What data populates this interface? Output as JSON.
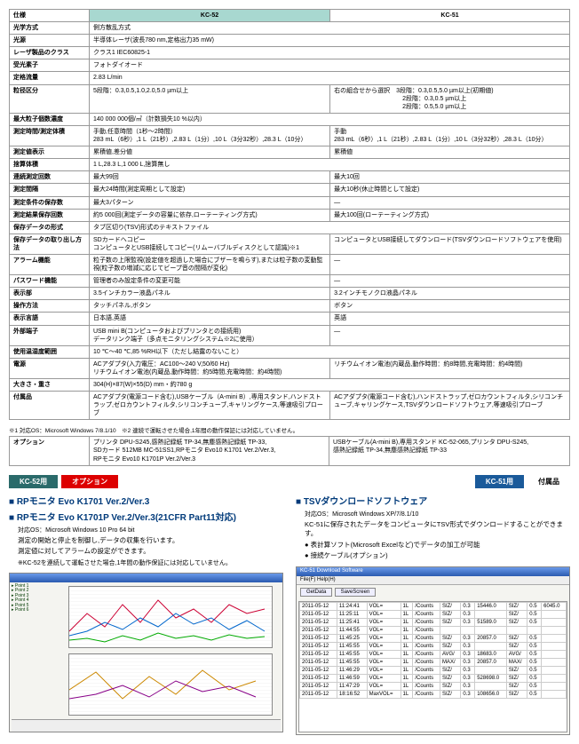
{
  "header": {
    "spec": "仕様",
    "kc52": "KC-52",
    "kc51": "KC-51"
  },
  "rows": [
    {
      "l": "光学方式",
      "a": "側方散乱方式",
      "b": ""
    },
    {
      "l": "光源",
      "a": "半導体レーザ(波長780 nm,定格出力35 mW)",
      "b": ""
    },
    {
      "l": "レーザ製品のクラス",
      "a": "クラス1 IEC60825-1",
      "b": ""
    },
    {
      "l": "受光素子",
      "a": "フォトダイオード",
      "b": ""
    },
    {
      "l": "定格流量",
      "a": "2.83 L/min",
      "b": ""
    },
    {
      "l": "粒径区分",
      "a": "5段階：0.3,0.5,1.0,2.0,5.0 µm以上",
      "b": "右の組合せから選択　3段階：0.3,0.5,5.0 µm以上(初期値)\n　　　　　　　　　　　2段階：0.3,0.5 µm以上\n　　　　　　　　　　　2段階：0.5,5.0 µm以上"
    },
    {
      "l": "最大粒子個数濃度",
      "a": "140 000 000個/㎥（計数損失10 %以内）",
      "b": ""
    },
    {
      "l": "測定時間/測定体積",
      "a": "手動,任意時間（1秒～2時間）\n283 mL（6秒）,1 L（21秒）,2.83 L（1分）,10 L（3分32秒）,28.3 L（10分）",
      "b": "手動\n283 mL（6秒）,1 L（21秒）,2.83 L（1分）,10 L（3分32秒）,28.3 L（10分）"
    },
    {
      "l": "測定値表示",
      "a": "累積値,差分値",
      "b": "累積値"
    },
    {
      "l": "捨算体積",
      "a": "1 L,28.3 L,1 000 L,捨算無し",
      "b": ""
    },
    {
      "l": "連続測定回数",
      "a": "最大99回",
      "b": "最大10回"
    },
    {
      "l": "測定間隔",
      "a": "最大24時間(測定周期として設定)",
      "b": "最大10秒(休止時間として設定)"
    },
    {
      "l": "測定条件の保存数",
      "a": "最大3パターン",
      "b": "—"
    },
    {
      "l": "測定結果保存回数",
      "a": "約5 000回(測定データの容量に依存,ローテーティング方式)",
      "b": "最大100回(ローテーティング方式)"
    },
    {
      "l": "保存データの形式",
      "a": "タブ区切り(TSV)形式のテキストファイル",
      "b": ""
    },
    {
      "l": "保存データの取り出し方法",
      "a": "SDカードへコピー\nコンピュータとUSB接続してコピー(リムーバブルディスクとして認識)※1",
      "b": "コンピュータとUSB接続してダウンロード(TSVダウンロードソフトウェアを使用)"
    },
    {
      "l": "アラーム機能",
      "a": "粒子数の上限監視(設定値を超過した場合にブザーを鳴らす),または粒子数の変動監視(粒子数の増減に応じてビープ音の間隔が変化)",
      "b": "—"
    },
    {
      "l": "パスワード機能",
      "a": "管理者のみ設定条件の変更可能",
      "b": "—"
    },
    {
      "l": "表示部",
      "a": "3.5インチカラー液晶パネル",
      "b": "3.2インチモノクロ液晶パネル"
    },
    {
      "l": "操作方法",
      "a": "タッチパネル,ボタン",
      "b": "ボタン"
    },
    {
      "l": "表示言語",
      "a": "日本語,英語",
      "b": "英語"
    },
    {
      "l": "外部端子",
      "a": "USB mini B(コンピュータおよびプリンタとの接続用)\nデータリンク端子（多点モニタリングシステム※2に使用）",
      "b": "—"
    },
    {
      "l": "使用温湿度範囲",
      "a": "10 ℃～40 ℃,85 %RH以下（ただし結露のないこと）",
      "b": ""
    },
    {
      "l": "電源",
      "a": "ACアダプタ(入力電圧：AC100～240 V,50/60 Hz)\nリチウムイオン電池(内蔵品,動作時間：約5時間,充電時間：約4時間)",
      "b": "リチウムイオン電池(内蔵品,動作時間：約8時間,充電時間：約4時間)"
    },
    {
      "l": "大きさ・重さ",
      "a": "304(H)×87(W)×55(D) mm・約780 g",
      "b": ""
    },
    {
      "l": "付属品",
      "a": "ACアダプタ(電源コード含む),USBケーブル（A-mini B）,専用スタンド,ハンドストラップ,ゼロカウントフィルタ,シリコンチューブ,キャリングケース,等速吸引プローブ",
      "b": "ACアダプタ(電源コード含む),ハンドストラップ,ゼロカウントフィルタ,シリコンチューブ,キャリングケース,TSVダウンロードソフトウェア,等速吸引プローブ"
    }
  ],
  "note1": "※1 対応OS：Microsoft Windows 7/8.1/10　※2 連続で運転させた場合,1年間の動作保証には対応していません。",
  "optRow": {
    "l": "オプション",
    "a": "プリンタ DPU-S245,感熱記録紙 TP-34,無塵感熱記録紙 TP-33,\nSDカード 512MB MC-51SS1,RPモニタ Evo10 K1701 Ver.2/Ver.3,\nRPモニタ Evo10 K1701P Ver.2/Ver.3",
    "b": "USBケーブル(A-mini B),専用スタンド KC-52-065,プリンタ DPU-S245,\n感熱記録紙 TP-34,無塵感熱記録紙 TP-33"
  },
  "left": {
    "tag": "KC-52用",
    "tagOpt": "オプション",
    "t1": "RPモニタ Evo K1701 Ver.2/Ver.3",
    "t2": "RPモニタ Evo K1701P Ver.2/Ver.3(21CFR Part11対応)",
    "os": "対応OS：Microsoft Windows 10 Pro 64 bit",
    "d1": "測定の開始と停止を制御し,データの収集を行います。",
    "d2": "測定値に対してアラームの設定ができます。",
    "d3": "※KC-52を連続して運転させた場合,1年間の動作保証には対応していません。"
  },
  "right": {
    "tag": "KC-51用",
    "tagAcc": "付属品",
    "t1": "TSVダウンロードソフトウェア",
    "os": "対応OS：Microsoft Windows XP/7/8.1/10",
    "d1": "KC-51に保存されたデータをコンピュータにTSV形式でダウンロードすることができます。",
    "b1": "表計算ソフト(Microsoft Excelなど)でデータの加工が可能",
    "b2": "接続ケーブル(オプション)",
    "winTitle": "KC-51 Download Software",
    "menu": "File(F)  Help(H)",
    "btn1": "GetData",
    "btn2": "SaveScreen",
    "cols": [
      "",
      "VOL=",
      "1L",
      "/Counts",
      "SIZ/",
      "0.3",
      "",
      "",
      "SIZ/",
      "0.5"
    ],
    "data": [
      [
        "2011-05-12",
        "11:24:41",
        "VOL=",
        "1L",
        "/Counts",
        "SIZ/",
        "0.3",
        "15446.0",
        "SIZ/",
        "0.5",
        "6045.0"
      ],
      [
        "2011-05-12",
        "11:25:11",
        "VOL=",
        "1L",
        "/Counts",
        "SIZ/",
        "0.3",
        "",
        "SIZ/",
        "0.5",
        ""
      ],
      [
        "2011-05-12",
        "11:25:41",
        "VOL=",
        "1L",
        "/Counts",
        "SIZ/",
        "0.3",
        "51589.0",
        "SIZ/",
        "0.5",
        ""
      ],
      [
        "2011-05-12",
        "11:44:55",
        "VOL=",
        "1L",
        "/Counts",
        "",
        "",
        "",
        "",
        "",
        ""
      ],
      [
        "2011-05-12",
        "11:45:25",
        "VOL=",
        "1L",
        "/Counts",
        "SIZ/",
        "0.3",
        "20857.0",
        "SIZ/",
        "0.5",
        ""
      ],
      [
        "2011-05-12",
        "11:45:55",
        "VOL=",
        "1L",
        "/Counts",
        "SIZ/",
        "0.3",
        "",
        "SIZ/",
        "0.5",
        ""
      ],
      [
        "2011-05-12",
        "11:45:55",
        "VOL=",
        "1L",
        "/Counts",
        "AVG/",
        "0.3",
        "18683.0",
        "AVG/",
        "0.5",
        ""
      ],
      [
        "2011-05-12",
        "11:45:55",
        "VOL=",
        "1L",
        "/Counts",
        "MAX/",
        "0.3",
        "20857.0",
        "MAX/",
        "0.5",
        ""
      ],
      [
        "2011-05-12",
        "11:46:29",
        "VOL=",
        "1L",
        "/Counts",
        "SIZ/",
        "0.3",
        "",
        "SIZ/",
        "0.5",
        ""
      ],
      [
        "2011-05-12",
        "11:46:59",
        "VOL=",
        "1L",
        "/Counts",
        "SIZ/",
        "0.3",
        "528698.0",
        "SIZ/",
        "0.5",
        ""
      ],
      [
        "2011-05-12",
        "11:47:29",
        "VOL=",
        "1L",
        "/Counts",
        "SIZ/",
        "0.3",
        "",
        "SIZ/",
        "0.5",
        ""
      ],
      [
        "2011-05-12",
        "18:16:52",
        "MaxVOL=",
        "1L",
        "/Counts",
        "SIZ/",
        "0.3",
        "108656.0",
        "SIZ/",
        "0.5",
        ""
      ]
    ]
  }
}
